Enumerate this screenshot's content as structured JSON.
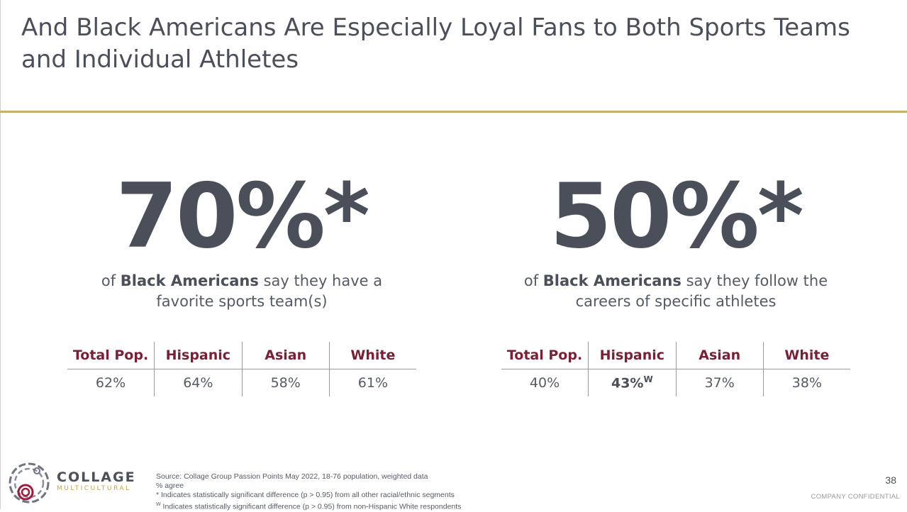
{
  "slide": {
    "title_line1": "And Black Americans Are Especially Loyal Fans to Both Sports Teams",
    "title_line2": "and Individual Athletes",
    "page_number": "38",
    "confidential": "COMPANY CONFIDENTIAL"
  },
  "stats": [
    {
      "big": "70%*",
      "pre": "of ",
      "bold": "Black Americans",
      "post_line1": " say they have a",
      "line2": "favorite sports team(s)",
      "headers": [
        "Total Pop.",
        "Hispanic",
        "Asian",
        "White"
      ],
      "values": [
        "62%",
        "64%",
        "58%",
        "61%"
      ]
    },
    {
      "big": "50%*",
      "pre": "of ",
      "bold": "Black Americans",
      "post_line1": " say they follow the",
      "line2": "careers of specific athletes",
      "headers": [
        "Total Pop.",
        "Hispanic",
        "Asian",
        "White"
      ],
      "values": [
        "40%",
        "43%",
        "37%",
        "38%"
      ],
      "hispanic_marker": "W"
    }
  ],
  "footnotes": {
    "source": "Source: Collage Group Passion Points May 2022, 18-76 population, weighted data",
    "agree": "% agree",
    "star_marker": "*",
    "star_text": " Indicates statistically significant difference (p > 0.95) from all other racial/ethnic segments",
    "w_marker": "W",
    "w_text": " Indicates statistically significant difference (p > 0.95) from non-Hispanic White respondents"
  },
  "logo": {
    "name": "COLLAGE",
    "sub": "MULTICULTURAL",
    "icon": "collage-swirl-icon"
  },
  "colors": {
    "text": "#4a4f5a",
    "accent_gold": "#c9b06a",
    "header_maroon": "#7b1f35"
  }
}
